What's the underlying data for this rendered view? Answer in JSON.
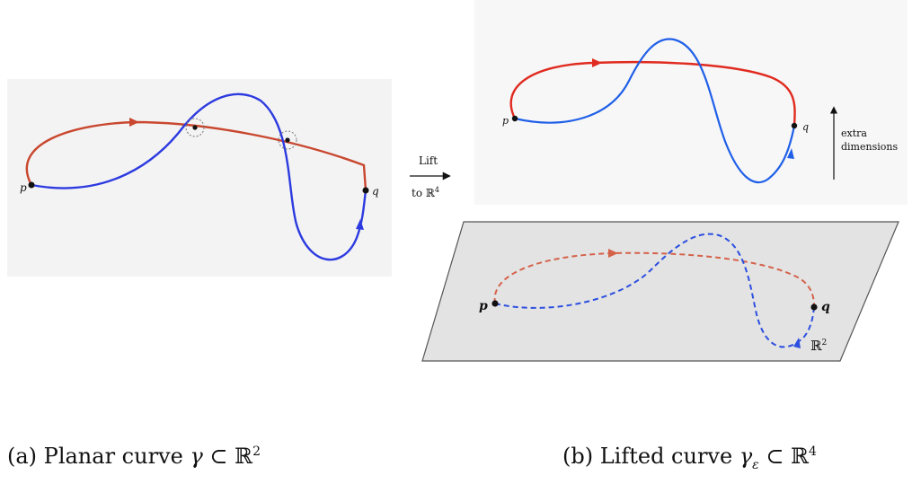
{
  "panel_a": {
    "point_p": "p",
    "point_q": "q",
    "caption_prefix": "(a) Planar curve ",
    "caption_gamma": "γ",
    "caption_subset": " ⊂ ",
    "caption_space": "ℝ",
    "caption_exp": "2"
  },
  "arrow": {
    "line1": "Lift",
    "line2": "to ℝ",
    "line2_exp": "4"
  },
  "panel_b": {
    "top_point_p": "p",
    "top_point_q": "q",
    "extra_line1": "extra",
    "extra_line2": "dimensions",
    "plane_point_p": "p",
    "plane_point_q": "q",
    "plane_label": "ℝ",
    "plane_label_exp": "2",
    "caption_prefix": "(b) Lifted curve ",
    "caption_gamma": "γ",
    "caption_sub": "ε",
    "caption_subset": " ⊂ ",
    "caption_space": "ℝ",
    "caption_exp": "4"
  },
  "colors": {
    "red_curve": "#e02b20",
    "red_dashed": "#d4624a",
    "blue_curve": "#1f3fe0",
    "plane_fill": "#e3e3e3"
  }
}
